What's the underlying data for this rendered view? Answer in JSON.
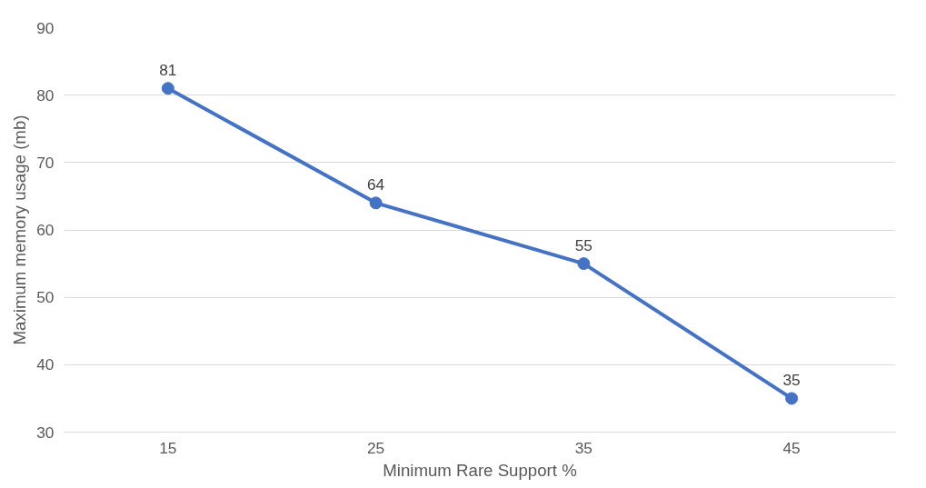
{
  "chart_data": {
    "type": "line",
    "xlabel": "Minimum Rare Support %",
    "ylabel": "Maximum memory usage (mb)",
    "categories": [
      "15",
      "25",
      "35",
      "45"
    ],
    "series": [
      {
        "color": "#4472c4",
        "values": [
          81,
          64,
          55,
          35
        ]
      }
    ],
    "ylim": [
      30,
      90
    ],
    "yticks": [
      30,
      40,
      50,
      60,
      70,
      80,
      90
    ],
    "grid": "y",
    "marker": "circle",
    "data_labels": true
  }
}
